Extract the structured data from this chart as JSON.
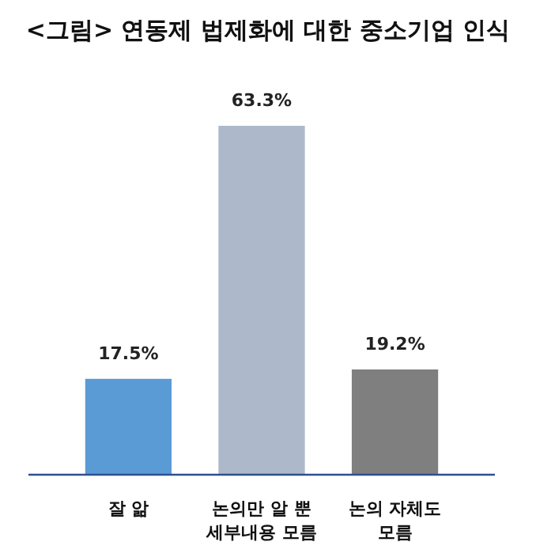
{
  "chart_data": {
    "type": "bar",
    "title": "<그림> 연동제 법제화에 대한 중소기업 인식",
    "categories": [
      "잘 앎",
      "논의만 알 뿐\n세부내용 모름",
      "논의 자체도\n모름"
    ],
    "values": [
      17.5,
      63.3,
      19.2
    ],
    "colors": [
      "#5b9bd5",
      "#adb9ca",
      "#7f7f7f"
    ],
    "value_labels": [
      "17.5%",
      "63.3%",
      "19.2%"
    ]
  }
}
